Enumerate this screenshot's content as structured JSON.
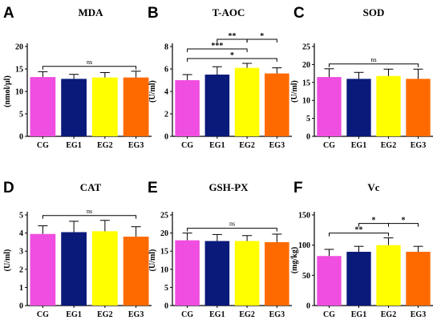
{
  "chart_data": [
    {
      "panel": "A",
      "type": "bar",
      "title": "MDA",
      "ylabel": "(nmol/μl)",
      "categories": [
        "CG",
        "EG1",
        "EG2",
        "EG3"
      ],
      "values": [
        13.2,
        12.8,
        13.1,
        13.1
      ],
      "errors": [
        1.2,
        1.0,
        1.1,
        1.4
      ],
      "ylim": [
        0,
        20
      ],
      "yticks": [
        "0",
        "5",
        "10",
        "15",
        "20"
      ],
      "colors": [
        "#f04ee0",
        "#0a1a7a",
        "#ffff00",
        "#ff6a00"
      ],
      "significance": [
        {
          "from": 0,
          "to": 3,
          "level": 1,
          "label": "ns"
        }
      ]
    },
    {
      "panel": "B",
      "type": "bar",
      "title": "T-AOC",
      "ylabel": "(U/ml)",
      "categories": [
        "CG",
        "EG1",
        "EG2",
        "EG3"
      ],
      "values": [
        5.0,
        5.5,
        6.1,
        5.6
      ],
      "errors": [
        0.5,
        0.7,
        0.4,
        0.5
      ],
      "ylim": [
        0,
        8
      ],
      "yticks": [
        "0",
        "2",
        "4",
        "6",
        "8"
      ],
      "colors": [
        "#f04ee0",
        "#0a1a7a",
        "#ffff00",
        "#ff6a00"
      ],
      "significance": [
        {
          "from": 0,
          "to": 2,
          "level": 2,
          "label": "***"
        },
        {
          "from": 0,
          "to": 3,
          "level": 1,
          "label": "*"
        },
        {
          "from": 1,
          "to": 2,
          "level": 3,
          "label": "**"
        },
        {
          "from": 2,
          "to": 3,
          "level": 3,
          "label": "*"
        }
      ]
    },
    {
      "panel": "C",
      "type": "bar",
      "title": "SOD",
      "ylabel": "(U/ml)",
      "categories": [
        "CG",
        "EG1",
        "EG2",
        "EG3"
      ],
      "values": [
        16.5,
        16.0,
        16.8,
        16.0
      ],
      "errors": [
        2.3,
        1.8,
        1.9,
        2.7
      ],
      "ylim": [
        0,
        25
      ],
      "yticks": [
        "0",
        "5",
        "10",
        "15",
        "20",
        "25"
      ],
      "colors": [
        "#f04ee0",
        "#0a1a7a",
        "#ffff00",
        "#ff6a00"
      ],
      "significance": [
        {
          "from": 0,
          "to": 3,
          "level": 1,
          "label": "ns"
        }
      ]
    },
    {
      "panel": "D",
      "type": "bar",
      "title": "CAT",
      "ylabel": "(U/ml)",
      "categories": [
        "CG",
        "EG1",
        "EG2",
        "EG3"
      ],
      "values": [
        3.95,
        4.05,
        4.1,
        3.8
      ],
      "errors": [
        0.45,
        0.6,
        0.6,
        0.55
      ],
      "ylim": [
        0,
        5
      ],
      "yticks": [
        "0",
        "1",
        "2",
        "3",
        "4",
        "5"
      ],
      "colors": [
        "#f04ee0",
        "#0a1a7a",
        "#ffff00",
        "#ff6a00"
      ],
      "significance": [
        {
          "from": 0,
          "to": 3,
          "level": 1,
          "label": "ns"
        }
      ]
    },
    {
      "panel": "E",
      "type": "bar",
      "title": "GSH-PX",
      "ylabel": "(U/ml)",
      "categories": [
        "CG",
        "EG1",
        "EG2",
        "EG3"
      ],
      "values": [
        18.0,
        17.8,
        17.8,
        17.5
      ],
      "errors": [
        2.0,
        1.8,
        1.5,
        2.2
      ],
      "ylim": [
        0,
        25
      ],
      "yticks": [
        "0",
        "5",
        "10",
        "15",
        "20",
        "25"
      ],
      "colors": [
        "#f04ee0",
        "#0a1a7a",
        "#ffff00",
        "#ff6a00"
      ],
      "significance": [
        {
          "from": 0,
          "to": 3,
          "level": 1,
          "label": "ns"
        }
      ]
    },
    {
      "panel": "F",
      "type": "bar",
      "title": "Vc",
      "ylabel": "(mg/kg)",
      "categories": [
        "CG",
        "EG1",
        "EG2",
        "EG3"
      ],
      "values": [
        82,
        89,
        100,
        89
      ],
      "errors": [
        11,
        9,
        12,
        9
      ],
      "ylim": [
        0,
        150
      ],
      "yticks": [
        "0",
        "50",
        "100",
        "150"
      ],
      "colors": [
        "#f04ee0",
        "#0a1a7a",
        "#ffff00",
        "#ff6a00"
      ],
      "significance": [
        {
          "from": 0,
          "to": 2,
          "level": 1,
          "label": "**"
        },
        {
          "from": 1,
          "to": 2,
          "level": 2,
          "label": "*"
        },
        {
          "from": 2,
          "to": 3,
          "level": 2,
          "label": "*"
        }
      ]
    }
  ]
}
